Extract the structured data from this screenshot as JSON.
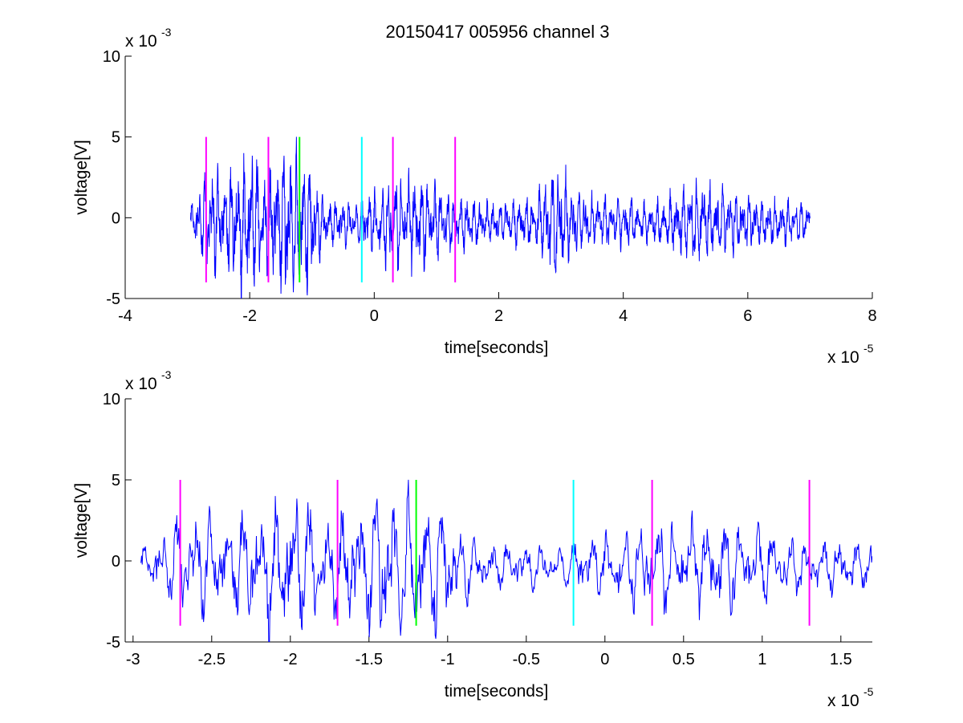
{
  "figure_title": "20150417 005956 channel 3",
  "chart_data": [
    {
      "type": "line",
      "title": "20150417 005956 channel 3",
      "xlabel": "time[seconds]",
      "ylabel": "voltage[V]",
      "x_multiplier_label": "x 10",
      "x_multiplier_exp": "-5",
      "y_multiplier_label": "x 10",
      "y_multiplier_exp": "-3",
      "xlim": [
        -4,
        8
      ],
      "ylim": [
        -5,
        10
      ],
      "xticks": [
        -4,
        -2,
        0,
        2,
        4,
        6,
        8
      ],
      "xtick_labels": [
        "-4",
        "-2",
        "0",
        "2",
        "4",
        "6",
        "8"
      ],
      "yticks": [
        -5,
        0,
        5,
        10
      ],
      "ytick_labels": [
        "-5",
        "0",
        "5",
        "10"
      ],
      "grid": false,
      "signal": {
        "color": "#0000ff",
        "x_start": -2.95,
        "x_end": 7.0,
        "envelope": [
          [
            -2.95,
            1.0
          ],
          [
            -2.7,
            3.3
          ],
          [
            -2.4,
            2.8
          ],
          [
            -2.0,
            4.3
          ],
          [
            -1.7,
            3.0
          ],
          [
            -1.4,
            4.5
          ],
          [
            -1.1,
            4.0
          ],
          [
            -0.8,
            1.5
          ],
          [
            -0.3,
            1.2
          ],
          [
            0.3,
            2.8
          ],
          [
            0.8,
            2.6
          ],
          [
            1.3,
            1.6
          ],
          [
            1.8,
            1.2
          ],
          [
            2.5,
            1.5
          ],
          [
            2.9,
            3.6
          ],
          [
            3.3,
            1.6
          ],
          [
            3.7,
            1.5
          ],
          [
            4.5,
            1.2
          ],
          [
            5.0,
            2.0
          ],
          [
            5.1,
            3.0
          ],
          [
            5.5,
            2.0
          ],
          [
            6.2,
            1.4
          ],
          [
            7.0,
            1.2
          ]
        ]
      },
      "markers": [
        {
          "x": -2.7,
          "color": "#ff00ff",
          "y_from": -4,
          "y_to": 5
        },
        {
          "x": -1.7,
          "color": "#ff00ff",
          "y_from": -4,
          "y_to": 5
        },
        {
          "x": -1.2,
          "color": "#00ff00",
          "y_from": -4,
          "y_to": 5
        },
        {
          "x": -0.2,
          "color": "#00ffff",
          "y_from": -4,
          "y_to": 5
        },
        {
          "x": 0.3,
          "color": "#ff00ff",
          "y_from": -4,
          "y_to": 5
        },
        {
          "x": 1.3,
          "color": "#ff00ff",
          "y_from": -4,
          "y_to": 5
        }
      ]
    },
    {
      "type": "line",
      "title": "",
      "xlabel": "time[seconds]",
      "ylabel": "voltage[V]",
      "x_multiplier_label": "x 10",
      "x_multiplier_exp": "-5",
      "y_multiplier_label": "x 10",
      "y_multiplier_exp": "-3",
      "xlim": [
        -3.05,
        1.7
      ],
      "ylim": [
        -5,
        10
      ],
      "xticks": [
        -3,
        -2.5,
        -2,
        -1.5,
        -1,
        -0.5,
        0,
        0.5,
        1,
        1.5
      ],
      "xtick_labels": [
        "-3",
        "-2.5",
        "-2",
        "-1.5",
        "-1",
        "-0.5",
        "0",
        "0.5",
        "1",
        "1.5"
      ],
      "yticks": [
        -5,
        0,
        5,
        10
      ],
      "ytick_labels": [
        "-5",
        "0",
        "5",
        "10"
      ],
      "grid": false,
      "signal": {
        "color": "#0000ff",
        "x_start": -2.95,
        "x_end": 1.7,
        "envelope": [
          [
            -2.95,
            1.0
          ],
          [
            -2.75,
            1.5
          ],
          [
            -2.6,
            3.3
          ],
          [
            -2.3,
            2.5
          ],
          [
            -2.0,
            4.3
          ],
          [
            -1.75,
            3.0
          ],
          [
            -1.6,
            2.0
          ],
          [
            -1.4,
            4.6
          ],
          [
            -1.2,
            2.5
          ],
          [
            -1.15,
            4.5
          ],
          [
            -0.9,
            2.0
          ],
          [
            -0.6,
            1.3
          ],
          [
            -0.3,
            1.0
          ],
          [
            -0.1,
            1.5
          ],
          [
            0.0,
            1.8
          ],
          [
            0.18,
            3.0
          ],
          [
            0.35,
            2.8
          ],
          [
            0.5,
            3.0
          ],
          [
            0.7,
            2.0
          ],
          [
            1.0,
            1.5
          ],
          [
            1.3,
            1.0
          ],
          [
            1.5,
            1.5
          ],
          [
            1.7,
            0.8
          ]
        ]
      },
      "markers": [
        {
          "x": -2.7,
          "color": "#ff00ff",
          "y_from": -4,
          "y_to": 5
        },
        {
          "x": -1.7,
          "color": "#ff00ff",
          "y_from": -4,
          "y_to": 5
        },
        {
          "x": -1.2,
          "color": "#00ff00",
          "y_from": -4,
          "y_to": 5
        },
        {
          "x": -0.2,
          "color": "#00ffff",
          "y_from": -4,
          "y_to": 5
        },
        {
          "x": 0.3,
          "color": "#ff00ff",
          "y_from": -4,
          "y_to": 5
        },
        {
          "x": 1.3,
          "color": "#ff00ff",
          "y_from": -4,
          "y_to": 5
        }
      ]
    }
  ]
}
